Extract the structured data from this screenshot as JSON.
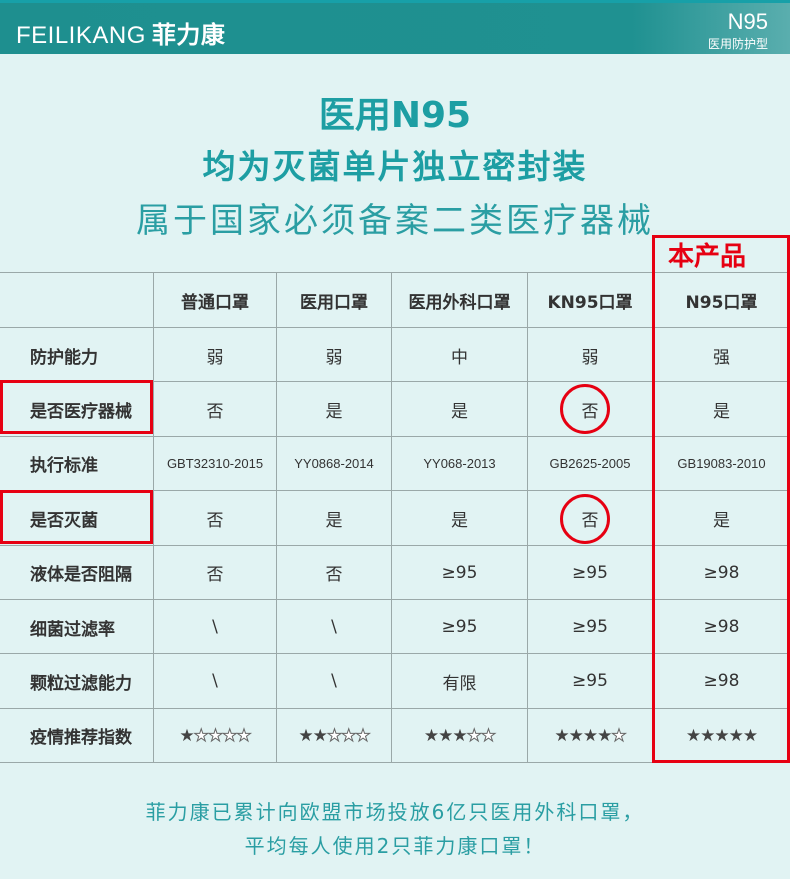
{
  "header": {
    "brand_en": "FEILIKANG",
    "brand_cn": "菲力康",
    "model": "N95",
    "model_sub": "医用防护型",
    "accent": "#1f9191"
  },
  "titles": {
    "line1": "医用N95",
    "line2": "均为灭菌单片独立密封装",
    "line3": "属于国家必须备案二类医疗器械"
  },
  "highlight": {
    "badge": "本产品",
    "color": "#e60012"
  },
  "table": {
    "columns": [
      "普通口罩",
      "医用口罩",
      "医用外科口罩",
      "KN95口罩",
      "N95口罩"
    ],
    "rows": [
      {
        "label": "防护能力",
        "cells": [
          "弱",
          "弱",
          "中",
          "弱",
          "强"
        ]
      },
      {
        "label": "是否医疗器械",
        "cells": [
          "否",
          "是",
          "是",
          "否",
          "是"
        ]
      },
      {
        "label": "执行标准",
        "cells": [
          "GBT32310-2015",
          "YY0868-2014",
          "YY068-2013",
          "GB2625-2005",
          "GB19083-2010"
        ]
      },
      {
        "label": "是否灭菌",
        "cells": [
          "否",
          "是",
          "是",
          "否",
          "是"
        ]
      },
      {
        "label": "液体是否阻隔",
        "cells": [
          "否",
          "否",
          "≥95",
          "≥95",
          "≥98"
        ]
      },
      {
        "label": "细菌过滤率",
        "cells": [
          "\\",
          "\\",
          "≥95",
          "≥95",
          "≥98"
        ]
      },
      {
        "label": "颗粒过滤能力",
        "cells": [
          "\\",
          "\\",
          "有限",
          "≥95",
          "≥98"
        ]
      },
      {
        "label": "疫情推荐指数",
        "ratings": [
          1,
          2,
          3,
          4,
          5
        ],
        "max": 5
      }
    ]
  },
  "footer": {
    "line1": "菲力康已累计向欧盟市场投放6亿只医用外科口罩，",
    "line2": "平均每人使用2只菲力康口罩！"
  }
}
